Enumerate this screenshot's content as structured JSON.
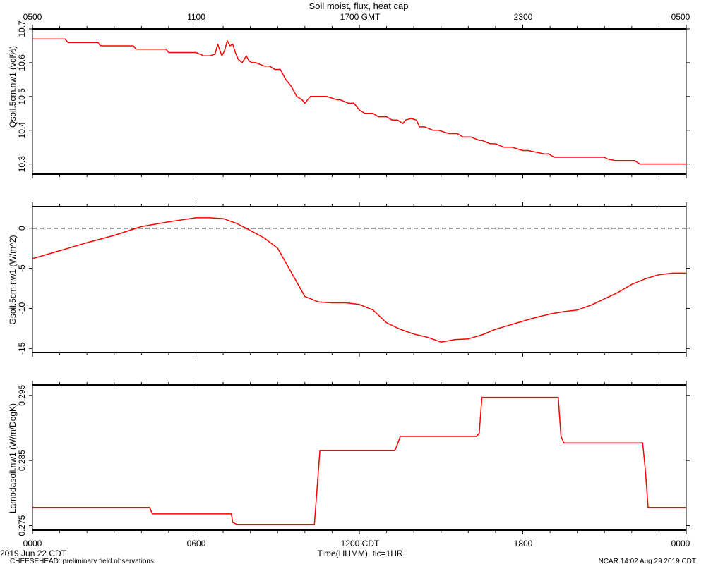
{
  "title": "Soil moist, flux, heat cap",
  "top_axis_ticks": [
    "0500",
    "1100",
    "1700 GMT",
    "2300",
    "0500"
  ],
  "bottom_axis_ticks": [
    "0000",
    "0600",
    "1200 CDT",
    "1800",
    "0000"
  ],
  "xlabel": "Time(HHMM), tic=1HR",
  "date_label": "2019 Jun 22 CDT",
  "footer_left": "CHEESEHEAD: preliminary field observations",
  "footer_right": "NCAR 14:02 Aug 29 2019 CDT",
  "colors": {
    "series": "#ff0000",
    "axes": "#000000",
    "zero_line": "#000000"
  },
  "chart_data": [
    {
      "type": "line",
      "ylabel": "Qsoil.5cm.nw1  (vol%)",
      "ylim": [
        10.27,
        10.7
      ],
      "yticks": [
        10.3,
        10.4,
        10.5,
        10.6,
        10.7
      ],
      "ytick_labels": [
        "10.3",
        "10.4",
        "10.5",
        "10.6",
        "10.7"
      ],
      "xlim": [
        0,
        24
      ],
      "series": [
        {
          "x": [
            0,
            1.2,
            1.3,
            2.4,
            2.5,
            3.7,
            3.8,
            4.9,
            5.0,
            5.8,
            6.0,
            6.3,
            6.5,
            6.7,
            6.8,
            6.95,
            7.05,
            7.15,
            7.25,
            7.35,
            7.45,
            7.55,
            7.7,
            7.85,
            7.95,
            8.05,
            8.2,
            8.5,
            8.7,
            8.9,
            9.1,
            9.3,
            9.5,
            9.7,
            9.9,
            10.0,
            10.2,
            10.4,
            10.5,
            10.8,
            11.2,
            11.3,
            11.6,
            11.8,
            12.0,
            12.2,
            12.5,
            12.7,
            13.0,
            13.2,
            13.4,
            13.6,
            13.7,
            13.9,
            14.1,
            14.2,
            14.4,
            14.7,
            14.9,
            15.3,
            15.6,
            15.8,
            16.1,
            16.4,
            16.5,
            16.8,
            17.0,
            17.3,
            17.6,
            18.0,
            18.2,
            18.8,
            18.95,
            19.15,
            19.25,
            20.0,
            21.0,
            21.1,
            21.4,
            22.1,
            22.3,
            24
          ],
          "y": [
            10.67,
            10.67,
            10.66,
            10.66,
            10.65,
            10.65,
            10.64,
            10.64,
            10.63,
            10.63,
            10.63,
            10.62,
            10.62,
            10.625,
            10.655,
            10.62,
            10.635,
            10.665,
            10.65,
            10.655,
            10.63,
            10.61,
            10.6,
            10.62,
            10.605,
            10.6,
            10.6,
            10.59,
            10.59,
            10.58,
            10.58,
            10.55,
            10.53,
            10.5,
            10.49,
            10.48,
            10.5,
            10.5,
            10.5,
            10.5,
            10.49,
            10.49,
            10.48,
            10.48,
            10.46,
            10.45,
            10.45,
            10.44,
            10.44,
            10.43,
            10.43,
            10.42,
            10.43,
            10.435,
            10.43,
            10.41,
            10.41,
            10.4,
            10.4,
            10.39,
            10.39,
            10.38,
            10.38,
            10.37,
            10.37,
            10.36,
            10.36,
            10.35,
            10.35,
            10.34,
            10.34,
            10.33,
            10.33,
            10.32,
            10.32,
            10.32,
            10.32,
            10.315,
            10.31,
            10.31,
            10.3,
            10.3
          ]
        }
      ]
    },
    {
      "type": "line",
      "ylabel": "Gsoil.5cm.nw1  (W/m^2)",
      "ylim": [
        -15.5,
        2.7
      ],
      "yticks": [
        -15,
        -10,
        -5,
        0
      ],
      "ytick_labels": [
        "-15",
        "-10",
        "-5",
        "0"
      ],
      "zero_line": true,
      "xlim": [
        0,
        24
      ],
      "series": [
        {
          "x": [
            0,
            1,
            2,
            3,
            4,
            5,
            6,
            6.5,
            7,
            7.5,
            8,
            8.5,
            9,
            9.5,
            10,
            10.5,
            11,
            11.5,
            12,
            12.5,
            13,
            13.5,
            14,
            14.5,
            15,
            15.5,
            16,
            16.5,
            17,
            17.5,
            18,
            18.5,
            19,
            19.5,
            20,
            20.5,
            21,
            21.5,
            22,
            22.5,
            23,
            23.5,
            24
          ],
          "y": [
            -3.8,
            -2.8,
            -1.8,
            -0.9,
            0.2,
            0.8,
            1.3,
            1.3,
            1.2,
            0.6,
            -0.3,
            -1.2,
            -2.5,
            -5.5,
            -8.5,
            -9.2,
            -9.3,
            -9.3,
            -9.5,
            -10.2,
            -11.8,
            -12.6,
            -13.2,
            -13.6,
            -14.2,
            -13.9,
            -13.8,
            -13.3,
            -12.6,
            -12.1,
            -11.6,
            -11.1,
            -10.7,
            -10.4,
            -10.2,
            -9.6,
            -8.8,
            -8.0,
            -7.0,
            -6.3,
            -5.8,
            -5.6,
            -5.6
          ]
        }
      ]
    },
    {
      "type": "line",
      "ylabel": "Lambdasoil.nw1  (W/m/DegK)",
      "ylim": [
        0.2743,
        0.2966
      ],
      "yticks": [
        0.275,
        0.285,
        0.295
      ],
      "ytick_labels": [
        "0.275",
        "0.285",
        "0.295"
      ],
      "xlim": [
        0,
        24
      ],
      "series": [
        {
          "x": [
            0,
            4.3,
            4.4,
            7.3,
            7.35,
            7.5,
            10.35,
            10.55,
            13.3,
            13.4,
            13.5,
            16.3,
            16.4,
            16.5,
            19.3,
            19.4,
            19.5,
            22.4,
            22.5,
            22.6,
            24
          ],
          "y": [
            0.2778,
            0.2778,
            0.2768,
            0.2768,
            0.2755,
            0.2752,
            0.2752,
            0.2865,
            0.2865,
            0.2875,
            0.2887,
            0.2887,
            0.2892,
            0.2947,
            0.2947,
            0.2888,
            0.2877,
            0.2877,
            0.2835,
            0.2778,
            0.2778
          ]
        }
      ]
    }
  ]
}
